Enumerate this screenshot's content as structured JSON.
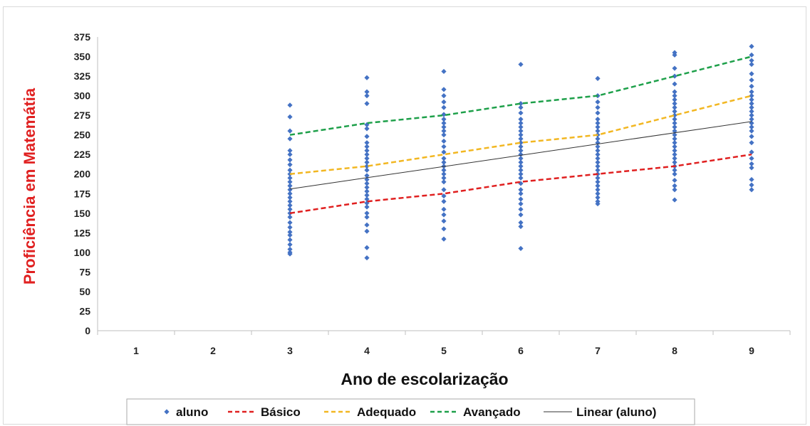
{
  "chart_data": {
    "type": "scatter",
    "title": "",
    "xlabel": "Ano de escolarização",
    "ylabel": "Proficiência em Matemátia",
    "x_categories": [
      "1",
      "2",
      "3",
      "4",
      "5",
      "6",
      "7",
      "8",
      "9"
    ],
    "yticks": [
      "0",
      "25",
      "50",
      "75",
      "100",
      "125",
      "150",
      "175",
      "200",
      "225",
      "250",
      "275",
      "300",
      "325",
      "350",
      "375"
    ],
    "ylim": [
      0,
      375
    ],
    "grid": false,
    "legend_position": "bottom",
    "colors": {
      "aluno": "#4472c4",
      "basico": "#e02020",
      "adequado": "#f2b722",
      "avancado": "#1ea04a",
      "linear": "#333333"
    },
    "series": [
      {
        "name": "aluno",
        "kind": "scatter",
        "points": [
          [
            3,
            98
          ],
          [
            3,
            100
          ],
          [
            3,
            104
          ],
          [
            3,
            110
          ],
          [
            3,
            116
          ],
          [
            3,
            122
          ],
          [
            3,
            126
          ],
          [
            3,
            132
          ],
          [
            3,
            138
          ],
          [
            3,
            145
          ],
          [
            3,
            150
          ],
          [
            3,
            155
          ],
          [
            3,
            160
          ],
          [
            3,
            165
          ],
          [
            3,
            170
          ],
          [
            3,
            175
          ],
          [
            3,
            180
          ],
          [
            3,
            185
          ],
          [
            3,
            190
          ],
          [
            3,
            195
          ],
          [
            3,
            200
          ],
          [
            3,
            205
          ],
          [
            3,
            212
          ],
          [
            3,
            218
          ],
          [
            3,
            225
          ],
          [
            3,
            230
          ],
          [
            3,
            245
          ],
          [
            3,
            255
          ],
          [
            3,
            273
          ],
          [
            3,
            288
          ],
          [
            4,
            93
          ],
          [
            4,
            106
          ],
          [
            4,
            127
          ],
          [
            4,
            135
          ],
          [
            4,
            145
          ],
          [
            4,
            150
          ],
          [
            4,
            158
          ],
          [
            4,
            163
          ],
          [
            4,
            168
          ],
          [
            4,
            173
          ],
          [
            4,
            178
          ],
          [
            4,
            183
          ],
          [
            4,
            188
          ],
          [
            4,
            193
          ],
          [
            4,
            198
          ],
          [
            4,
            205
          ],
          [
            4,
            210
          ],
          [
            4,
            215
          ],
          [
            4,
            220
          ],
          [
            4,
            225
          ],
          [
            4,
            230
          ],
          [
            4,
            235
          ],
          [
            4,
            240
          ],
          [
            4,
            248
          ],
          [
            4,
            258
          ],
          [
            4,
            263
          ],
          [
            4,
            290
          ],
          [
            4,
            300
          ],
          [
            4,
            305
          ],
          [
            4,
            323
          ],
          [
            5,
            117
          ],
          [
            5,
            130
          ],
          [
            5,
            140
          ],
          [
            5,
            148
          ],
          [
            5,
            155
          ],
          [
            5,
            165
          ],
          [
            5,
            172
          ],
          [
            5,
            180
          ],
          [
            5,
            190
          ],
          [
            5,
            195
          ],
          [
            5,
            200
          ],
          [
            5,
            205
          ],
          [
            5,
            210
          ],
          [
            5,
            215
          ],
          [
            5,
            220
          ],
          [
            5,
            228
          ],
          [
            5,
            235
          ],
          [
            5,
            242
          ],
          [
            5,
            250
          ],
          [
            5,
            255
          ],
          [
            5,
            260
          ],
          [
            5,
            265
          ],
          [
            5,
            270
          ],
          [
            5,
            276
          ],
          [
            5,
            285
          ],
          [
            5,
            292
          ],
          [
            5,
            300
          ],
          [
            5,
            308
          ],
          [
            5,
            331
          ],
          [
            6,
            105
          ],
          [
            6,
            133
          ],
          [
            6,
            138
          ],
          [
            6,
            148
          ],
          [
            6,
            155
          ],
          [
            6,
            162
          ],
          [
            6,
            168
          ],
          [
            6,
            175
          ],
          [
            6,
            180
          ],
          [
            6,
            188
          ],
          [
            6,
            195
          ],
          [
            6,
            200
          ],
          [
            6,
            205
          ],
          [
            6,
            210
          ],
          [
            6,
            215
          ],
          [
            6,
            220
          ],
          [
            6,
            225
          ],
          [
            6,
            230
          ],
          [
            6,
            235
          ],
          [
            6,
            240
          ],
          [
            6,
            245
          ],
          [
            6,
            250
          ],
          [
            6,
            255
          ],
          [
            6,
            260
          ],
          [
            6,
            265
          ],
          [
            6,
            270
          ],
          [
            6,
            278
          ],
          [
            6,
            285
          ],
          [
            6,
            290
          ],
          [
            6,
            340
          ],
          [
            7,
            162
          ],
          [
            7,
            165
          ],
          [
            7,
            170
          ],
          [
            7,
            175
          ],
          [
            7,
            180
          ],
          [
            7,
            185
          ],
          [
            7,
            190
          ],
          [
            7,
            195
          ],
          [
            7,
            200
          ],
          [
            7,
            205
          ],
          [
            7,
            210
          ],
          [
            7,
            215
          ],
          [
            7,
            220
          ],
          [
            7,
            225
          ],
          [
            7,
            230
          ],
          [
            7,
            235
          ],
          [
            7,
            240
          ],
          [
            7,
            245
          ],
          [
            7,
            250
          ],
          [
            7,
            255
          ],
          [
            7,
            260
          ],
          [
            7,
            265
          ],
          [
            7,
            270
          ],
          [
            7,
            278
          ],
          [
            7,
            285
          ],
          [
            7,
            292
          ],
          [
            7,
            300
          ],
          [
            7,
            322
          ],
          [
            8,
            167
          ],
          [
            8,
            180
          ],
          [
            8,
            185
          ],
          [
            8,
            192
          ],
          [
            8,
            200
          ],
          [
            8,
            205
          ],
          [
            8,
            210
          ],
          [
            8,
            215
          ],
          [
            8,
            220
          ],
          [
            8,
            225
          ],
          [
            8,
            230
          ],
          [
            8,
            235
          ],
          [
            8,
            240
          ],
          [
            8,
            245
          ],
          [
            8,
            250
          ],
          [
            8,
            255
          ],
          [
            8,
            260
          ],
          [
            8,
            265
          ],
          [
            8,
            270
          ],
          [
            8,
            275
          ],
          [
            8,
            280
          ],
          [
            8,
            285
          ],
          [
            8,
            290
          ],
          [
            8,
            295
          ],
          [
            8,
            300
          ],
          [
            8,
            305
          ],
          [
            8,
            315
          ],
          [
            8,
            325
          ],
          [
            8,
            335
          ],
          [
            8,
            352
          ],
          [
            8,
            355
          ],
          [
            9,
            180
          ],
          [
            9,
            186
          ],
          [
            9,
            193
          ],
          [
            9,
            208
          ],
          [
            9,
            213
          ],
          [
            9,
            220
          ],
          [
            9,
            228
          ],
          [
            9,
            240
          ],
          [
            9,
            248
          ],
          [
            9,
            255
          ],
          [
            9,
            260
          ],
          [
            9,
            265
          ],
          [
            9,
            270
          ],
          [
            9,
            275
          ],
          [
            9,
            280
          ],
          [
            9,
            285
          ],
          [
            9,
            290
          ],
          [
            9,
            295
          ],
          [
            9,
            300
          ],
          [
            9,
            305
          ],
          [
            9,
            312
          ],
          [
            9,
            320
          ],
          [
            9,
            328
          ],
          [
            9,
            340
          ],
          [
            9,
            345
          ],
          [
            9,
            352
          ],
          [
            9,
            363
          ]
        ]
      },
      {
        "name": "Básico",
        "kind": "dashed-line",
        "x": [
          3,
          4,
          5,
          6,
          7,
          8,
          9
        ],
        "y": [
          150,
          165,
          175,
          190,
          200,
          210,
          225
        ]
      },
      {
        "name": "Adequado",
        "kind": "dashed-line",
        "x": [
          3,
          4,
          5,
          6,
          7,
          8,
          9
        ],
        "y": [
          200,
          210,
          225,
          240,
          250,
          275,
          300
        ]
      },
      {
        "name": "Avançado",
        "kind": "dashed-line",
        "x": [
          3,
          4,
          5,
          6,
          7,
          8,
          9
        ],
        "y": [
          250,
          265,
          275,
          290,
          300,
          325,
          350
        ]
      },
      {
        "name": "Linear (aluno)",
        "kind": "trendline",
        "x": [
          3,
          9
        ],
        "y": [
          181,
          267
        ]
      }
    ]
  }
}
